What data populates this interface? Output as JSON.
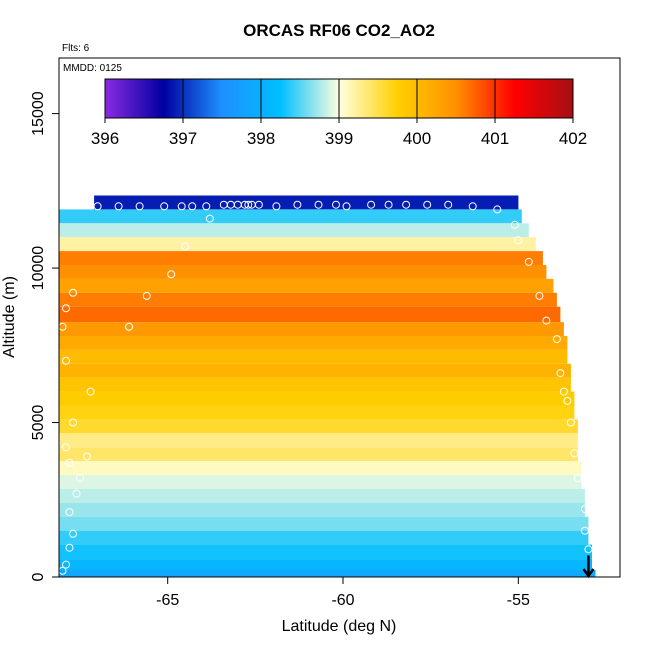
{
  "chart_data": {
    "type": "heatmap",
    "title": "ORCAS RF06 CO2_AO2",
    "flights_label": "Flts: 6",
    "date_label": "MMDD: 0125",
    "xlabel": "Latitude (deg N)",
    "ylabel": "Altitude (m)",
    "xlim": [
      -68.1,
      -52.1
    ],
    "ylim": [
      0,
      16800
    ],
    "x_ticks": [
      -65,
      -60,
      -55
    ],
    "x_tick_labels": [
      "-65",
      "-60",
      "-55"
    ],
    "y_ticks": [
      0,
      5000,
      10000,
      15000
    ],
    "y_tick_labels": [
      "0",
      "5000",
      "10000",
      "15000"
    ],
    "colorbar": {
      "range": [
        396,
        402
      ],
      "ticks": [
        396,
        397,
        398,
        399,
        400,
        401,
        402
      ],
      "tick_labels": [
        "396",
        "397",
        "398",
        "399",
        "400",
        "401",
        "402"
      ],
      "colors": [
        "#8a2be2",
        "#0000a0",
        "#1e90ff",
        "#00bfff",
        "#ffffe0",
        "#ffd000",
        "#ff9000",
        "#ff0000",
        "#a50f15"
      ]
    },
    "profile_rows": [
      {
        "alt": 12100,
        "co2": 396.9,
        "lat_start": -67.1,
        "lat_end": -55.0
      },
      {
        "alt": 11700,
        "co2": 398.4,
        "lat_start": -68.1,
        "lat_end": -54.9
      },
      {
        "alt": 11200,
        "co2": 398.8,
        "lat_start": -68.1,
        "lat_end": -54.7
      },
      {
        "alt": 10800,
        "co2": 399.2,
        "lat_start": -68.1,
        "lat_end": -54.5
      },
      {
        "alt": 10300,
        "co2": 400.6,
        "lat_start": -68.1,
        "lat_end": -54.3
      },
      {
        "alt": 9900,
        "co2": 400.5,
        "lat_start": -68.1,
        "lat_end": -54.2
      },
      {
        "alt": 9400,
        "co2": 400.3,
        "lat_start": -68.1,
        "lat_end": -54.0
      },
      {
        "alt": 9000,
        "co2": 400.6,
        "lat_start": -68.1,
        "lat_end": -53.9
      },
      {
        "alt": 8500,
        "co2": 400.7,
        "lat_start": -68.1,
        "lat_end": -53.8
      },
      {
        "alt": 8000,
        "co2": 400.4,
        "lat_start": -68.1,
        "lat_end": -53.7
      },
      {
        "alt": 7600,
        "co2": 400.2,
        "lat_start": -68.1,
        "lat_end": -53.6
      },
      {
        "alt": 7100,
        "co2": 400.0,
        "lat_start": -68.1,
        "lat_end": -53.6
      },
      {
        "alt": 6700,
        "co2": 400.1,
        "lat_start": -68.1,
        "lat_end": -53.5
      },
      {
        "alt": 6200,
        "co2": 399.9,
        "lat_start": -68.1,
        "lat_end": -53.5
      },
      {
        "alt": 5800,
        "co2": 399.8,
        "lat_start": -68.1,
        "lat_end": -53.4
      },
      {
        "alt": 5300,
        "co2": 399.7,
        "lat_start": -68.1,
        "lat_end": -53.4
      },
      {
        "alt": 4900,
        "co2": 399.6,
        "lat_start": -68.1,
        "lat_end": -53.3
      },
      {
        "alt": 4400,
        "co2": 399.3,
        "lat_start": -68.1,
        "lat_end": -53.3
      },
      {
        "alt": 4000,
        "co2": 399.4,
        "lat_start": -68.1,
        "lat_end": -53.3
      },
      {
        "alt": 3500,
        "co2": 399.1,
        "lat_start": -68.1,
        "lat_end": -53.2
      },
      {
        "alt": 3100,
        "co2": 398.9,
        "lat_start": -68.1,
        "lat_end": -53.2
      },
      {
        "alt": 2600,
        "co2": 398.8,
        "lat_start": -68.1,
        "lat_end": -53.1
      },
      {
        "alt": 2200,
        "co2": 398.7,
        "lat_start": -68.1,
        "lat_end": -53.1
      },
      {
        "alt": 1700,
        "co2": 398.6,
        "lat_start": -68.1,
        "lat_end": -53.0
      },
      {
        "alt": 1300,
        "co2": 398.4,
        "lat_start": -68.1,
        "lat_end": -53.0
      },
      {
        "alt": 800,
        "co2": 398.3,
        "lat_start": -68.1,
        "lat_end": -52.9
      },
      {
        "alt": 350,
        "co2": 398.1,
        "lat_start": -68.1,
        "lat_end": -52.9
      },
      {
        "alt": 100,
        "co2": 397.9,
        "lat_start": -68.1,
        "lat_end": -52.8
      }
    ],
    "observations": [
      {
        "lat": -68.0,
        "alt": 200
      },
      {
        "lat": -67.9,
        "alt": 400
      },
      {
        "lat": -67.8,
        "alt": 950
      },
      {
        "lat": -67.7,
        "alt": 1400
      },
      {
        "lat": -67.8,
        "alt": 2100
      },
      {
        "lat": -67.6,
        "alt": 2700
      },
      {
        "lat": -67.5,
        "alt": 3200
      },
      {
        "lat": -67.8,
        "alt": 3700
      },
      {
        "lat": -67.9,
        "alt": 4200
      },
      {
        "lat": -67.3,
        "alt": 3900
      },
      {
        "lat": -67.7,
        "alt": 5000
      },
      {
        "lat": -67.2,
        "alt": 6000
      },
      {
        "lat": -67.9,
        "alt": 7000
      },
      {
        "lat": -68.0,
        "alt": 8100
      },
      {
        "lat": -67.9,
        "alt": 8700
      },
      {
        "lat": -67.7,
        "alt": 9200
      },
      {
        "lat": -66.1,
        "alt": 8100
      },
      {
        "lat": -65.6,
        "alt": 9100
      },
      {
        "lat": -64.9,
        "alt": 9800
      },
      {
        "lat": -64.5,
        "alt": 10700
      },
      {
        "lat": -63.8,
        "alt": 11600
      },
      {
        "lat": -67.0,
        "alt": 12000
      },
      {
        "lat": -66.4,
        "alt": 12000
      },
      {
        "lat": -65.8,
        "alt": 12000
      },
      {
        "lat": -65.1,
        "alt": 12000
      },
      {
        "lat": -64.6,
        "alt": 12000
      },
      {
        "lat": -64.3,
        "alt": 12000
      },
      {
        "lat": -63.9,
        "alt": 12000
      },
      {
        "lat": -63.4,
        "alt": 12050
      },
      {
        "lat": -63.2,
        "alt": 12050
      },
      {
        "lat": -63.0,
        "alt": 12050
      },
      {
        "lat": -62.8,
        "alt": 12050
      },
      {
        "lat": -62.7,
        "alt": 12050
      },
      {
        "lat": -62.6,
        "alt": 12050
      },
      {
        "lat": -62.4,
        "alt": 12050
      },
      {
        "lat": -61.9,
        "alt": 12000
      },
      {
        "lat": -61.3,
        "alt": 12050
      },
      {
        "lat": -60.7,
        "alt": 12050
      },
      {
        "lat": -60.2,
        "alt": 12050
      },
      {
        "lat": -59.9,
        "alt": 12000
      },
      {
        "lat": -59.2,
        "alt": 12050
      },
      {
        "lat": -58.7,
        "alt": 12050
      },
      {
        "lat": -58.2,
        "alt": 12050
      },
      {
        "lat": -57.6,
        "alt": 12050
      },
      {
        "lat": -57.0,
        "alt": 12050
      },
      {
        "lat": -56.3,
        "alt": 12000
      },
      {
        "lat": -55.6,
        "alt": 11900
      },
      {
        "lat": -55.1,
        "alt": 11400
      },
      {
        "lat": -55.0,
        "alt": 10900
      },
      {
        "lat": -54.7,
        "alt": 10200
      },
      {
        "lat": -54.4,
        "alt": 9100
      },
      {
        "lat": -54.2,
        "alt": 8300
      },
      {
        "lat": -53.9,
        "alt": 7700
      },
      {
        "lat": -53.8,
        "alt": 6600
      },
      {
        "lat": -53.7,
        "alt": 6000
      },
      {
        "lat": -53.6,
        "alt": 5700
      },
      {
        "lat": -53.5,
        "alt": 5000
      },
      {
        "lat": -53.4,
        "alt": 4000
      },
      {
        "lat": -53.3,
        "alt": 3200
      },
      {
        "lat": -53.1,
        "alt": 2200
      },
      {
        "lat": -53.1,
        "alt": 1500
      },
      {
        "lat": -53.0,
        "alt": 900
      }
    ],
    "arrow": {
      "lat": -53.0,
      "alt_from": 700,
      "alt_to": 0
    }
  }
}
